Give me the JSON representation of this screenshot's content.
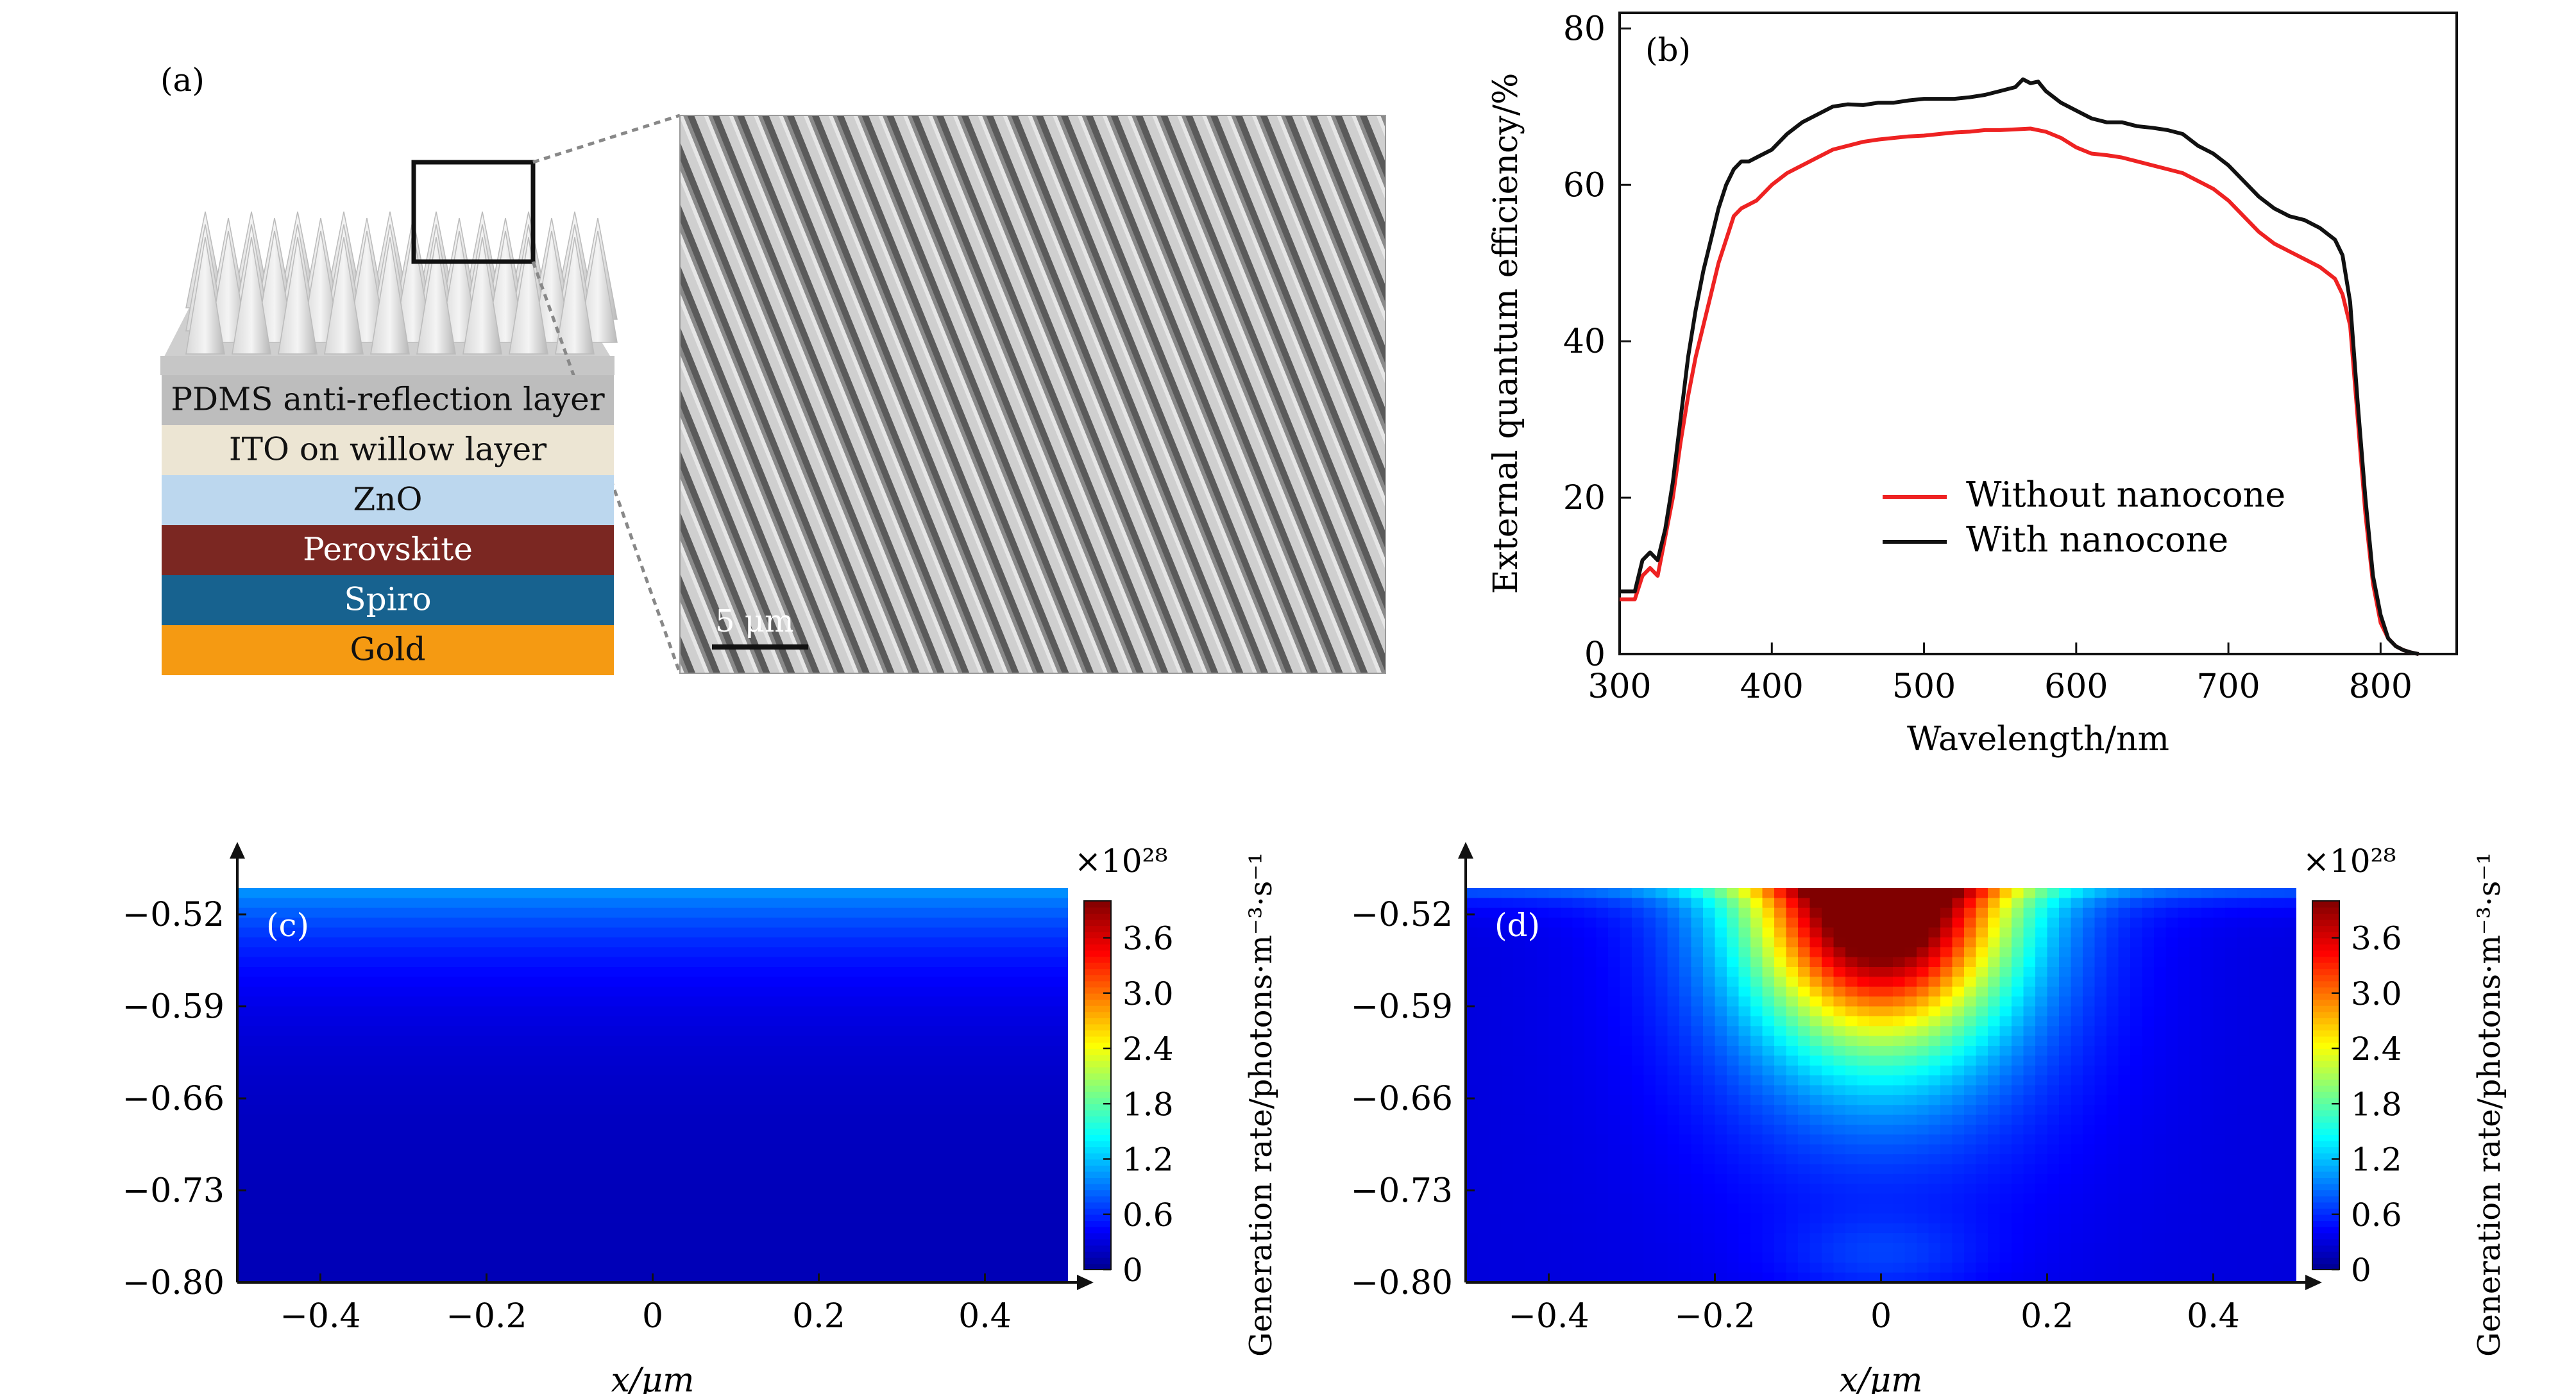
{
  "panel_labels": {
    "a": "(a)",
    "b": "(b)",
    "c": "(c)",
    "d": "(d)"
  },
  "panel_a": {
    "layers": [
      {
        "label": "PDMS anti-reflection layer",
        "color": "#bdbdbd",
        "text_color": "#111111"
      },
      {
        "label": "ITO on willow layer",
        "color": "#ece5d3",
        "text_color": "#111111"
      },
      {
        "label": "ZnO",
        "color": "#bcd7ee",
        "text_color": "#111111"
      },
      {
        "label": "Perovskite",
        "color": "#7b2722",
        "text_color": "#ffffff"
      },
      {
        "label": "Spiro",
        "color": "#17628f",
        "text_color": "#ffffff"
      },
      {
        "label": "Gold",
        "color": "#f59a12",
        "text_color": "#111111"
      }
    ],
    "scalebar_label": "5 μm"
  },
  "chart_data": [
    {
      "type": "line",
      "panel": "b",
      "xlabel": "Wavelength/nm",
      "ylabel": "External quantum efficiency/%",
      "xlim": [
        300,
        850
      ],
      "ylim": [
        0,
        82
      ],
      "xticks": [
        300,
        400,
        500,
        600,
        700,
        800
      ],
      "yticks": [
        0,
        20,
        40,
        60,
        80
      ],
      "legend_position": "lower-right",
      "series": [
        {
          "name": "Without nanocone",
          "color": "#ee2222",
          "x": [
            300,
            310,
            315,
            320,
            325,
            330,
            335,
            340,
            345,
            350,
            355,
            360,
            365,
            370,
            375,
            380,
            385,
            390,
            400,
            410,
            420,
            430,
            440,
            450,
            460,
            470,
            480,
            490,
            500,
            510,
            520,
            530,
            540,
            550,
            560,
            570,
            580,
            590,
            600,
            610,
            620,
            630,
            640,
            650,
            660,
            670,
            680,
            690,
            700,
            710,
            720,
            730,
            740,
            750,
            760,
            770,
            775,
            780,
            785,
            790,
            795,
            800,
            805,
            810,
            815,
            820,
            825
          ],
          "y": [
            7,
            7,
            10,
            11,
            10,
            15,
            20,
            27,
            33,
            38,
            42,
            46,
            50,
            53,
            56,
            57,
            57.5,
            58,
            60,
            61.5,
            62.5,
            63.5,
            64.5,
            65,
            65.5,
            65.8,
            66,
            66.2,
            66.3,
            66.5,
            66.7,
            66.8,
            67,
            67,
            67.1,
            67.2,
            66.8,
            66,
            64.8,
            64,
            63.8,
            63.5,
            63,
            62.5,
            62,
            61.5,
            60.5,
            59.5,
            58,
            56,
            54,
            52.5,
            51.5,
            50.5,
            49.5,
            48,
            46,
            42,
            30,
            18,
            9,
            4,
            2,
            1,
            0.5,
            0.2,
            0
          ]
        },
        {
          "name": "With nanocone",
          "color": "#111111",
          "x": [
            300,
            310,
            315,
            320,
            325,
            330,
            335,
            340,
            345,
            350,
            355,
            360,
            365,
            370,
            375,
            380,
            385,
            390,
            400,
            410,
            420,
            430,
            440,
            450,
            460,
            470,
            480,
            490,
            500,
            510,
            520,
            530,
            540,
            550,
            560,
            565,
            570,
            575,
            580,
            590,
            600,
            610,
            620,
            630,
            640,
            650,
            660,
            670,
            680,
            690,
            700,
            710,
            720,
            730,
            740,
            750,
            760,
            770,
            775,
            780,
            785,
            790,
            795,
            800,
            805,
            810,
            815,
            820,
            825
          ],
          "y": [
            8,
            8,
            12,
            13,
            12,
            16,
            22,
            30,
            38,
            44,
            49,
            53,
            57,
            60,
            62,
            63,
            63,
            63.5,
            64.5,
            66.5,
            68,
            69,
            70,
            70.3,
            70.2,
            70.5,
            70.5,
            70.8,
            71,
            71,
            71,
            71.2,
            71.5,
            72,
            72.5,
            73.5,
            73,
            73.2,
            72,
            70.5,
            69.5,
            68.5,
            68,
            68,
            67.5,
            67.3,
            67,
            66.5,
            65,
            64,
            62.5,
            60.5,
            58.5,
            57,
            56,
            55.5,
            54.5,
            53,
            51,
            45,
            32,
            20,
            10,
            5,
            2,
            1,
            0.5,
            0.2,
            0
          ]
        }
      ]
    },
    {
      "type": "heatmap",
      "panel": "c",
      "xlabel": "x/μm",
      "ylabel": "",
      "xlim": [
        -0.5,
        0.5
      ],
      "ylim": [
        -0.8,
        -0.5
      ],
      "xticks": [
        -0.4,
        -0.2,
        0,
        0.2,
        0.4
      ],
      "yticks": [
        -0.52,
        -0.59,
        -0.66,
        -0.73,
        -0.8
      ],
      "colorbar": {
        "label": "Generation rate/photons·m⁻³·s⁻¹",
        "exponent": "×10²⁸",
        "ticks": [
          0,
          0.6,
          1.2,
          1.8,
          2.4,
          3.0,
          3.6
        ],
        "range": [
          0,
          4.0
        ]
      },
      "field": {
        "background": 0.15,
        "top_value": 0.9,
        "top_decay": 0.06,
        "hotspot_peak": 0,
        "hotspot_width": 0.15
      }
    },
    {
      "type": "heatmap",
      "panel": "d",
      "xlabel": "x/μm",
      "ylabel": "",
      "xlim": [
        -0.5,
        0.5
      ],
      "ylim": [
        -0.8,
        -0.5
      ],
      "xticks": [
        -0.4,
        -0.2,
        0,
        0.2,
        0.4
      ],
      "yticks": [
        -0.52,
        -0.59,
        -0.66,
        -0.73,
        -0.8
      ],
      "colorbar": {
        "label": "Generation rate/photons·m⁻³·s⁻¹",
        "exponent": "×10²⁸",
        "ticks": [
          0,
          0.6,
          1.2,
          1.8,
          2.4,
          3.0,
          3.6
        ],
        "range": [
          0,
          4.0
        ]
      },
      "field": {
        "background": 0.3,
        "top_value": 0.6,
        "top_decay": 0.01,
        "hotspot_peak": 3.9,
        "hotspot_width": 0.15
      }
    }
  ]
}
